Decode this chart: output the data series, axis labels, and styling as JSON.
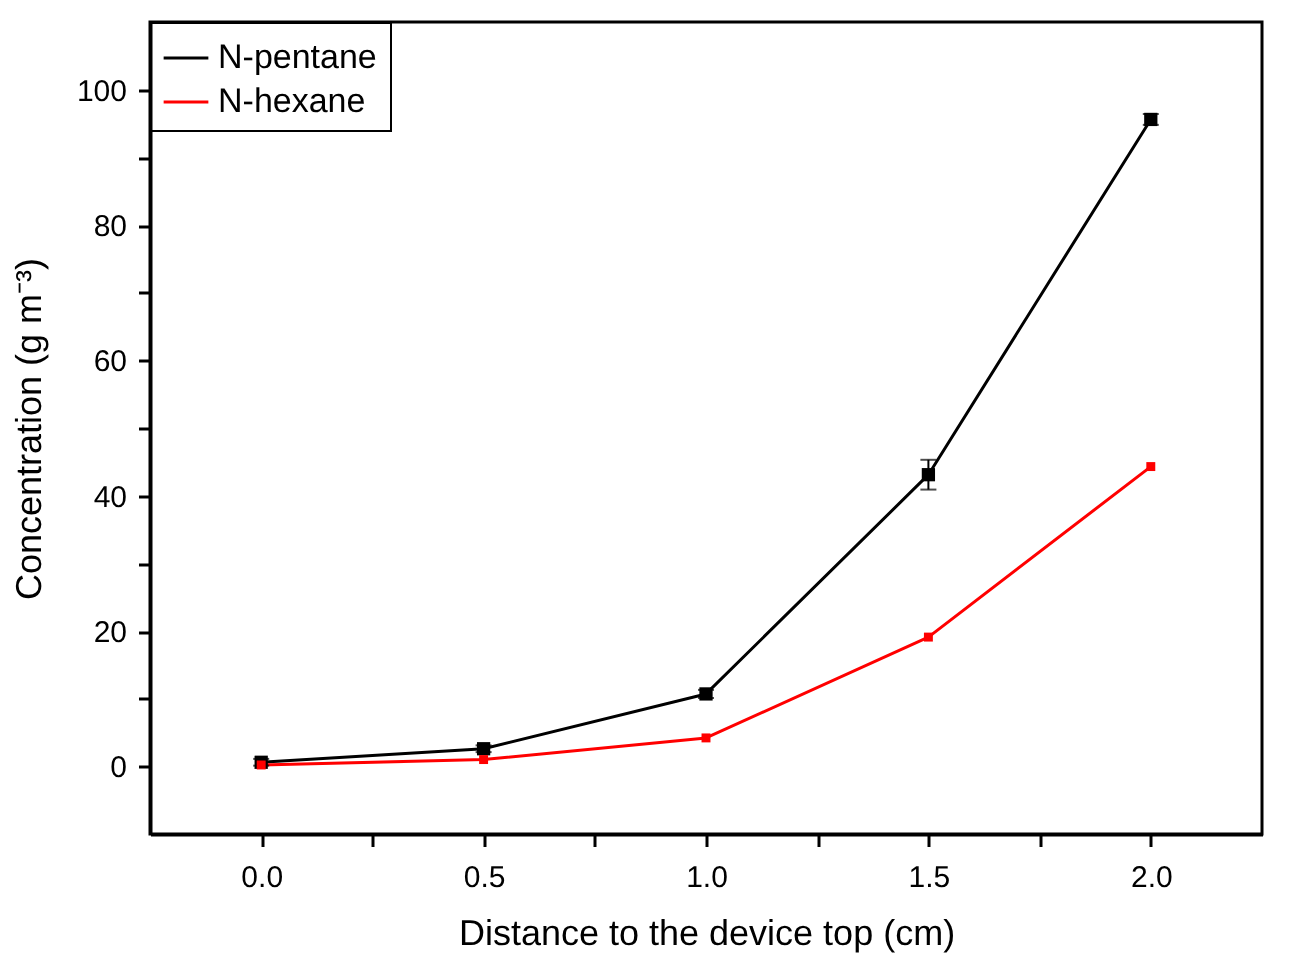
{
  "chart_data": {
    "type": "line",
    "xlabel": "Distance to the device top (cm)",
    "ylabel": "Concentration (g m⁻³)",
    "x": [
      0,
      0.5,
      1,
      1.5,
      2
    ],
    "series": [
      {
        "name": "N-pentane",
        "color": "#000000",
        "values": [
          0.6,
          2.6,
          10.7,
          43.1,
          95.6
        ],
        "errors": [
          0.5,
          0.5,
          0.6,
          2.2,
          0.8
        ]
      },
      {
        "name": "N-hexane",
        "color": "#ff0000",
        "values": [
          0.2,
          1.0,
          4.2,
          19.1,
          44.3
        ]
      }
    ],
    "xlim": [
      -0.25,
      2.25
    ],
    "xticks": [
      {
        "value": 0,
        "label": "0.0"
      },
      {
        "value": 0.25,
        "label": null
      },
      {
        "value": 0.5,
        "label": "0.5"
      },
      {
        "value": 0.75,
        "label": null
      },
      {
        "value": 1,
        "label": "1.0"
      },
      {
        "value": 1.25,
        "label": null
      },
      {
        "value": 1.5,
        "label": "1.5"
      },
      {
        "value": 1.75,
        "label": null
      },
      {
        "value": 2,
        "label": "2.0"
      }
    ],
    "ylim": [
      -10,
      110
    ],
    "yticks": [
      0,
      {
        "value": 10,
        "label": null
      },
      20,
      {
        "value": 30,
        "label": null
      },
      40,
      {
        "value": 50,
        "label": null
      },
      60,
      {
        "value": 70,
        "label": null
      },
      80,
      {
        "value": 90,
        "label": null
      },
      100
    ],
    "grid": false,
    "legend": "top left",
    "marker": "square",
    "line_style": "solid"
  }
}
